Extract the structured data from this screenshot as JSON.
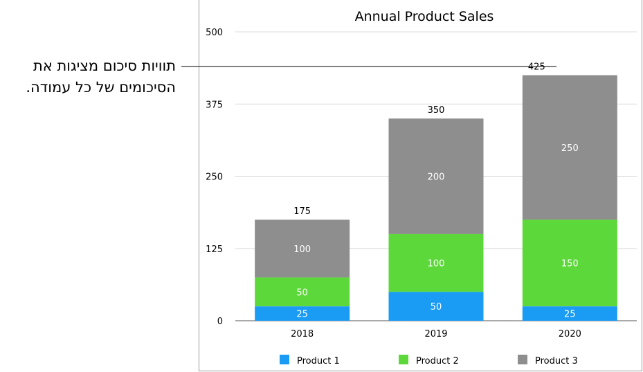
{
  "callout": {
    "line1": "תוויות סיכום מציגות את",
    "line2": "הסיכומים של כל עמודה."
  },
  "chart_data": {
    "type": "bar",
    "stacked": true,
    "title": "Annual Product Sales",
    "categories": [
      "2018",
      "2019",
      "2020"
    ],
    "series": [
      {
        "name": "Product 1",
        "values": [
          25,
          50,
          25
        ],
        "color": "#1a9cf5"
      },
      {
        "name": "Product 2",
        "values": [
          50,
          100,
          150
        ],
        "color": "#5dd83a"
      },
      {
        "name": "Product 3",
        "values": [
          100,
          200,
          250
        ],
        "color": "#8e8e8e"
      }
    ],
    "totals": [
      175,
      350,
      425
    ],
    "yticks": [
      0,
      125,
      250,
      375,
      500
    ],
    "ylim": [
      0,
      500
    ],
    "legend_position": "bottom",
    "grid": true
  }
}
